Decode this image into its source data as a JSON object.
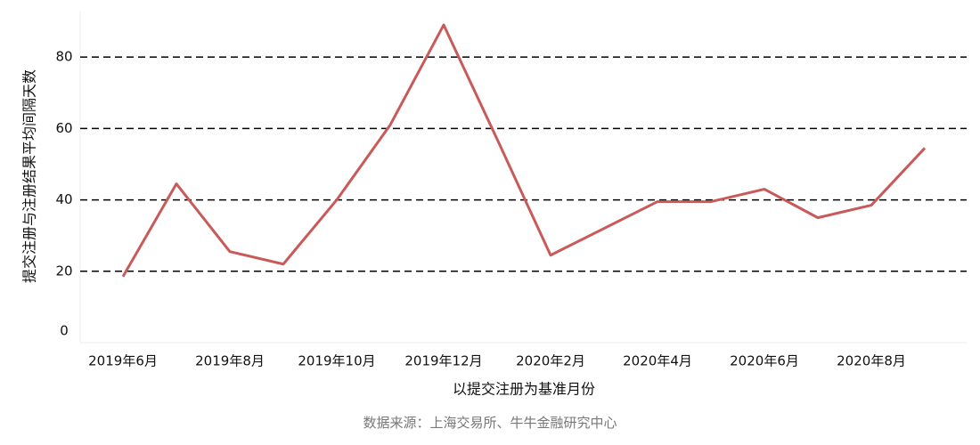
{
  "chart_data": {
    "type": "line",
    "y_label": "提交注册与注册结果平均间隔天数",
    "x_label": "以提交注册为基准月份",
    "source": "数据来源：上海交易所、牛牛金融研究中心",
    "categories": [
      "2019年6月",
      null,
      "2019年8月",
      null,
      "2019年10月",
      null,
      "2019年12月",
      null,
      "2020年2月",
      null,
      "2020年4月",
      null,
      "2020年6月",
      null,
      "2020年8月",
      null
    ],
    "series": [
      {
        "color": "#c85a5a",
        "values": [
          18.5,
          44.5,
          25.5,
          22,
          40,
          61,
          89,
          57,
          24.5,
          32,
          39.5,
          39.5,
          43,
          35,
          38.5,
          54.5
        ]
      }
    ],
    "ylim": [
      0,
      93
    ],
    "yticks": [
      0,
      20,
      40,
      60,
      80
    ],
    "grid": true,
    "grid_style": "dashed"
  }
}
